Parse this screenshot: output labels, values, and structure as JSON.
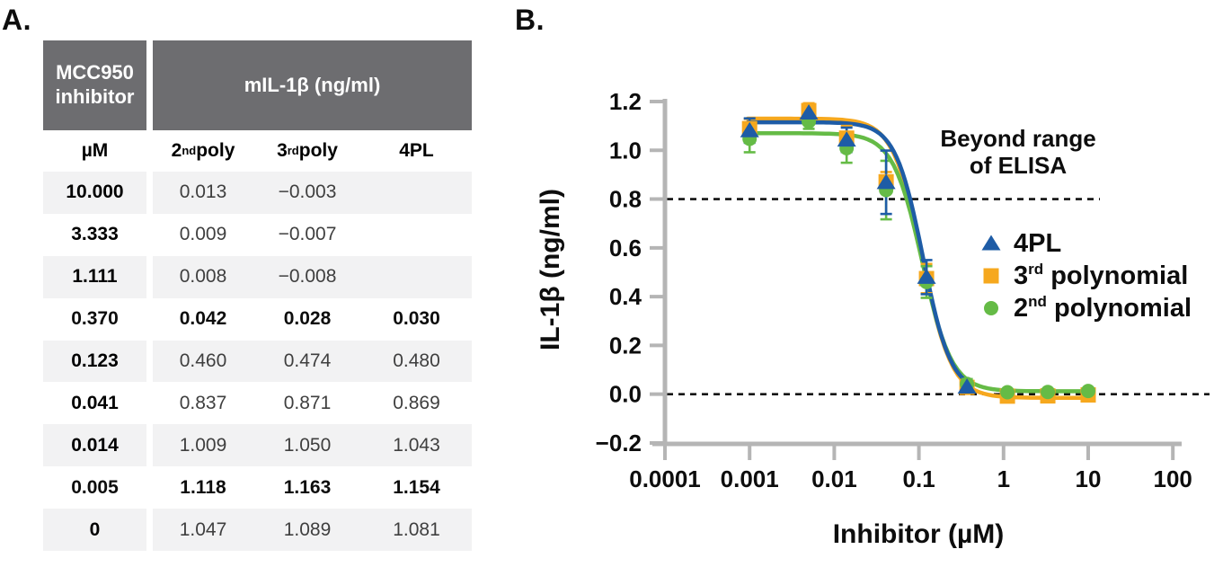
{
  "panel_a": {
    "label": "A.",
    "table": {
      "header_col1": "MCC950 inhibitor",
      "header_span": "mIL-1β (ng/ml)",
      "subheaders": [
        {
          "pre": "µM",
          "sup": "",
          "post": ""
        },
        {
          "pre": "2",
          "sup": "nd",
          "post": " poly"
        },
        {
          "pre": "3",
          "sup": "rd",
          "post": " poly"
        },
        {
          "pre": "4PL",
          "sup": "",
          "post": ""
        }
      ],
      "rows": [
        {
          "um": "10.000",
          "poly2": "0.013",
          "poly3": "−0.003",
          "pl4": "",
          "bold": false
        },
        {
          "um": "3.333",
          "poly2": "0.009",
          "poly3": "−0.007",
          "pl4": "",
          "bold": false
        },
        {
          "um": "1.111",
          "poly2": "0.008",
          "poly3": "−0.008",
          "pl4": "",
          "bold": false
        },
        {
          "um": "0.370",
          "poly2": "0.042",
          "poly3": "0.028",
          "pl4": "0.030",
          "bold": true
        },
        {
          "um": "0.123",
          "poly2": "0.460",
          "poly3": "0.474",
          "pl4": "0.480",
          "bold": false
        },
        {
          "um": "0.041",
          "poly2": "0.837",
          "poly3": "0.871",
          "pl4": "0.869",
          "bold": false
        },
        {
          "um": "0.014",
          "poly2": "1.009",
          "poly3": "1.050",
          "pl4": "1.043",
          "bold": false
        },
        {
          "um": "0.005",
          "poly2": "1.118",
          "poly3": "1.163",
          "pl4": "1.154",
          "bold": true
        },
        {
          "um": "0",
          "poly2": "1.047",
          "poly3": "1.089",
          "pl4": "1.081",
          "bold": false
        }
      ]
    }
  },
  "panel_b": {
    "label": "B."
  },
  "colors": {
    "blue": "#1e5ca6",
    "orange": "#f6a81e",
    "green": "#65bb46",
    "axis_gray": "#b5b5b5",
    "dashed_black": "#111111",
    "header_gray": "#6d6d70",
    "row_shade": "#f2f2f3"
  },
  "chart_data": {
    "type": "scatter",
    "xlabel": "Inhibitor (µM)",
    "ylabel": "IL-1β (ng/ml)",
    "x_scale": "log",
    "xlim": [
      0.0001,
      100
    ],
    "ylim": [
      -0.2,
      1.2
    ],
    "x_tick_values": [
      0.0001,
      0.001,
      0.01,
      0.1,
      1,
      10,
      100
    ],
    "x_tick_labels": [
      "0.0001",
      "0.001",
      "0.01",
      "0.1",
      "1",
      "10",
      "100"
    ],
    "y_tick_values": [
      -0.2,
      0.0,
      0.2,
      0.4,
      0.6,
      0.8,
      1.0,
      1.2
    ],
    "y_tick_labels": [
      "−0.2",
      "0.0",
      "0.2",
      "0.4",
      "0.6",
      "0.8",
      "1.0",
      "1.2"
    ],
    "dashed_lines_y": [
      0.8,
      0.0
    ],
    "annotation_lines": [
      "Beyond range",
      "of ELISA"
    ],
    "legend_position": "right-middle",
    "grid": false,
    "series": [
      {
        "name": "3rd polynomial",
        "legend": {
          "pre": "3",
          "sup": "rd",
          "post": " polynomial"
        },
        "marker": "square",
        "color": "#f6a81e",
        "x": [
          0.001,
          0.005,
          0.014,
          0.041,
          0.123,
          0.37,
          1.111,
          3.333,
          10
        ],
        "y": [
          1.089,
          1.163,
          1.05,
          0.871,
          0.474,
          0.028,
          -0.008,
          -0.007,
          -0.003
        ],
        "err": [
          0.04,
          0.03,
          0.05,
          0.04,
          0.06,
          0.02,
          0.015,
          0.015,
          0.015
        ],
        "fit": {
          "top": 1.13,
          "bottom": -0.015,
          "ec50": 0.11,
          "hill": 2.5,
          "x_start": 0.00095,
          "x_end": 10.8
        }
      },
      {
        "name": "2nd polynomial",
        "legend": {
          "pre": "2",
          "sup": "nd",
          "post": " polynomial"
        },
        "marker": "circle",
        "color": "#65bb46",
        "x": [
          0.001,
          0.005,
          0.014,
          0.041,
          0.123,
          0.37,
          1.111,
          3.333,
          10
        ],
        "y": [
          1.047,
          1.118,
          1.009,
          0.837,
          0.46,
          0.042,
          0.008,
          0.009,
          0.013
        ],
        "err": [
          0.055,
          0.03,
          0.06,
          0.12,
          0.065,
          0.02,
          0.01,
          0.01,
          0.01
        ],
        "fit": {
          "top": 1.07,
          "bottom": 0.012,
          "ec50": 0.11,
          "hill": 2.5,
          "x_start": 0.00095,
          "x_end": 10.8
        }
      },
      {
        "name": "4PL",
        "legend": {
          "pre": "4PL",
          "sup": "",
          "post": ""
        },
        "marker": "triangle",
        "color": "#1e5ca6",
        "x": [
          0.001,
          0.005,
          0.014,
          0.041,
          0.123,
          0.37
        ],
        "y": [
          1.081,
          1.154,
          1.043,
          0.869,
          0.48,
          0.03
        ],
        "err": [
          0.05,
          0.025,
          0.05,
          0.13,
          0.07,
          0.025
        ],
        "fit": {
          "top": 1.115,
          "bottom": 0.005,
          "ec50": 0.112,
          "hill": 2.65,
          "x_start": 0.00095,
          "x_end": 0.43
        }
      }
    ],
    "legend_order": [
      "4PL",
      "3rd polynomial",
      "2nd polynomial"
    ]
  }
}
